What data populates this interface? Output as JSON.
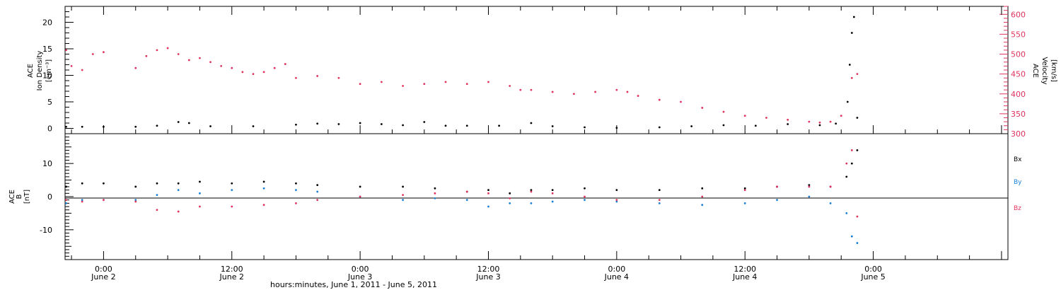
{
  "colors": {
    "black": "#000000",
    "red": "#e0335f",
    "blue": "#1a7fd4"
  },
  "x_axis": {
    "title": "hours:minutes, June  1, 2011 - June  5, 2011",
    "range_hours": [
      -3.6,
      84.6
    ],
    "ticks": [
      {
        "h": 0,
        "time": "0:00",
        "day": "June 2"
      },
      {
        "h": 12,
        "time": "12:00",
        "day": "June 2"
      },
      {
        "h": 24,
        "time": "0:00",
        "day": "June 3"
      },
      {
        "h": 36,
        "time": "12:00",
        "day": "June 3"
      },
      {
        "h": 48,
        "time": "0:00",
        "day": "June 4"
      },
      {
        "h": 60,
        "time": "12:00",
        "day": "June 4"
      },
      {
        "h": 72,
        "time": "0:00",
        "day": "June 5"
      }
    ],
    "minor_step_hours": 3
  },
  "chart_data": [
    {
      "type": "scatter",
      "title": "",
      "ylabel_left": [
        "ACE",
        "Ion Density",
        "[cm⁻³]"
      ],
      "ylabel_right": [
        "ACE",
        "Velocity",
        "[km/s]"
      ],
      "ylim_left": [
        -1,
        23
      ],
      "ylim_right": [
        300,
        620
      ],
      "yticks_left": [
        0,
        5,
        10,
        15,
        20
      ],
      "yticks_right": [
        300,
        350,
        400,
        450,
        500,
        550,
        600
      ],
      "series": [
        {
          "axis": "left",
          "color": "#000000",
          "points": [
            [
              -3.5,
              0.3
            ],
            [
              -2,
              0.3
            ],
            [
              0,
              0.3
            ],
            [
              3,
              0.3
            ],
            [
              5,
              0.5
            ],
            [
              7,
              1.2
            ],
            [
              8,
              1.0
            ],
            [
              10,
              0.4
            ],
            [
              14,
              0.4
            ],
            [
              18,
              0.7
            ],
            [
              20,
              0.9
            ],
            [
              22,
              0.8
            ],
            [
              24,
              1.0
            ],
            [
              26,
              0.8
            ],
            [
              28,
              0.6
            ],
            [
              30,
              1.2
            ],
            [
              32,
              0.5
            ],
            [
              34,
              0.5
            ],
            [
              37,
              0.5
            ],
            [
              40,
              1.0
            ],
            [
              42,
              0.4
            ],
            [
              45,
              0.2
            ],
            [
              48,
              0.1
            ],
            [
              52,
              0.2
            ],
            [
              55,
              0.4
            ],
            [
              58,
              0.6
            ],
            [
              61,
              0.5
            ],
            [
              64,
              0.8
            ],
            [
              67,
              0.6
            ],
            [
              68.5,
              0.9
            ],
            [
              69.6,
              5
            ],
            [
              69.8,
              12
            ],
            [
              70,
              18
            ],
            [
              70.2,
              21
            ],
            [
              70.5,
              2
            ]
          ]
        },
        {
          "axis": "right",
          "color": "#e0335f",
          "points": [
            [
              -3.5,
              510
            ],
            [
              -3,
              470
            ],
            [
              -2,
              460
            ],
            [
              -1,
              500
            ],
            [
              0,
              505
            ],
            [
              3,
              465
            ],
            [
              4,
              495
            ],
            [
              5,
              510
            ],
            [
              6,
              515
            ],
            [
              7,
              500
            ],
            [
              8,
              485
            ],
            [
              9,
              490
            ],
            [
              10,
              480
            ],
            [
              11,
              470
            ],
            [
              12,
              465
            ],
            [
              13,
              455
            ],
            [
              14,
              450
            ],
            [
              15,
              455
            ],
            [
              16,
              465
            ],
            [
              17,
              475
            ],
            [
              18,
              440
            ],
            [
              20,
              445
            ],
            [
              22,
              440
            ],
            [
              24,
              425
            ],
            [
              26,
              430
            ],
            [
              28,
              420
            ],
            [
              30,
              425
            ],
            [
              32,
              430
            ],
            [
              34,
              425
            ],
            [
              36,
              430
            ],
            [
              38,
              420
            ],
            [
              39,
              410
            ],
            [
              40,
              410
            ],
            [
              42,
              405
            ],
            [
              44,
              400
            ],
            [
              46,
              405
            ],
            [
              48,
              410
            ],
            [
              49,
              405
            ],
            [
              50,
              395
            ],
            [
              52,
              385
            ],
            [
              54,
              380
            ],
            [
              56,
              365
            ],
            [
              58,
              355
            ],
            [
              60,
              345
            ],
            [
              62,
              340
            ],
            [
              64,
              335
            ],
            [
              66,
              330
            ],
            [
              67,
              328
            ],
            [
              68,
              330
            ],
            [
              69,
              345
            ],
            [
              70,
              440
            ],
            [
              70.5,
              450
            ]
          ]
        }
      ]
    },
    {
      "type": "scatter",
      "title": "",
      "ylabel_left": [
        "ACE",
        "B",
        "[nT]"
      ],
      "ylim": [
        -19,
        19
      ],
      "yticks_left": [
        -10,
        0,
        10
      ],
      "legend": [
        "Bx",
        "By",
        "Bz"
      ],
      "legend_placement": "right",
      "series": [
        {
          "name": "Bx",
          "color": "#000000",
          "points": [
            [
              -3.5,
              3
            ],
            [
              -2,
              4
            ],
            [
              0,
              4
            ],
            [
              3,
              3
            ],
            [
              5,
              4
            ],
            [
              7,
              4
            ],
            [
              9,
              4.5
            ],
            [
              12,
              4
            ],
            [
              15,
              4.5
            ],
            [
              18,
              4
            ],
            [
              20,
              3.5
            ],
            [
              24,
              3
            ],
            [
              28,
              3
            ],
            [
              31,
              2.5
            ],
            [
              34,
              1.5
            ],
            [
              36,
              2
            ],
            [
              38,
              1
            ],
            [
              40,
              2
            ],
            [
              42,
              2
            ],
            [
              45,
              2.5
            ],
            [
              48,
              2
            ],
            [
              52,
              2
            ],
            [
              56,
              2.5
            ],
            [
              60,
              2.5
            ],
            [
              63,
              3
            ],
            [
              66,
              3.5
            ],
            [
              68,
              3
            ],
            [
              69.5,
              6
            ],
            [
              70,
              10
            ],
            [
              70.5,
              14
            ]
          ]
        },
        {
          "name": "By",
          "color": "#1a7fd4",
          "points": [
            [
              -3.5,
              -2
            ],
            [
              -2,
              -1
            ],
            [
              0,
              -1
            ],
            [
              3,
              -1
            ],
            [
              5,
              0.5
            ],
            [
              7,
              2
            ],
            [
              9,
              1
            ],
            [
              12,
              2
            ],
            [
              15,
              2.5
            ],
            [
              18,
              2
            ],
            [
              20,
              1.5
            ],
            [
              24,
              0
            ],
            [
              28,
              -1
            ],
            [
              31,
              -0.5
            ],
            [
              34,
              -1
            ],
            [
              36,
              -3
            ],
            [
              38,
              -2
            ],
            [
              40,
              -2
            ],
            [
              42,
              -1.5
            ],
            [
              45,
              -1
            ],
            [
              48,
              -1.5
            ],
            [
              52,
              -2
            ],
            [
              56,
              -2.5
            ],
            [
              60,
              -2
            ],
            [
              63,
              -1
            ],
            [
              66,
              0
            ],
            [
              68,
              -2
            ],
            [
              69.5,
              -5
            ],
            [
              70,
              -12
            ],
            [
              70.5,
              -14
            ]
          ]
        },
        {
          "name": "Bz",
          "color": "#e0335f",
          "points": [
            [
              -3.5,
              -1
            ],
            [
              -2,
              -1.5
            ],
            [
              0,
              -1
            ],
            [
              3,
              -1.5
            ],
            [
              5,
              -4
            ],
            [
              7,
              -4.5
            ],
            [
              9,
              -3
            ],
            [
              12,
              -3
            ],
            [
              15,
              -2.5
            ],
            [
              18,
              -2
            ],
            [
              20,
              -1
            ],
            [
              24,
              0
            ],
            [
              28,
              0.5
            ],
            [
              31,
              1
            ],
            [
              34,
              1.5
            ],
            [
              36,
              1
            ],
            [
              38,
              -0.5
            ],
            [
              40,
              1.5
            ],
            [
              42,
              1
            ],
            [
              45,
              0
            ],
            [
              48,
              -1
            ],
            [
              52,
              -1
            ],
            [
              56,
              0
            ],
            [
              60,
              2
            ],
            [
              63,
              3
            ],
            [
              66,
              3
            ],
            [
              68,
              3
            ],
            [
              69.5,
              10
            ],
            [
              70,
              14
            ],
            [
              70.5,
              -6
            ]
          ]
        }
      ]
    }
  ]
}
